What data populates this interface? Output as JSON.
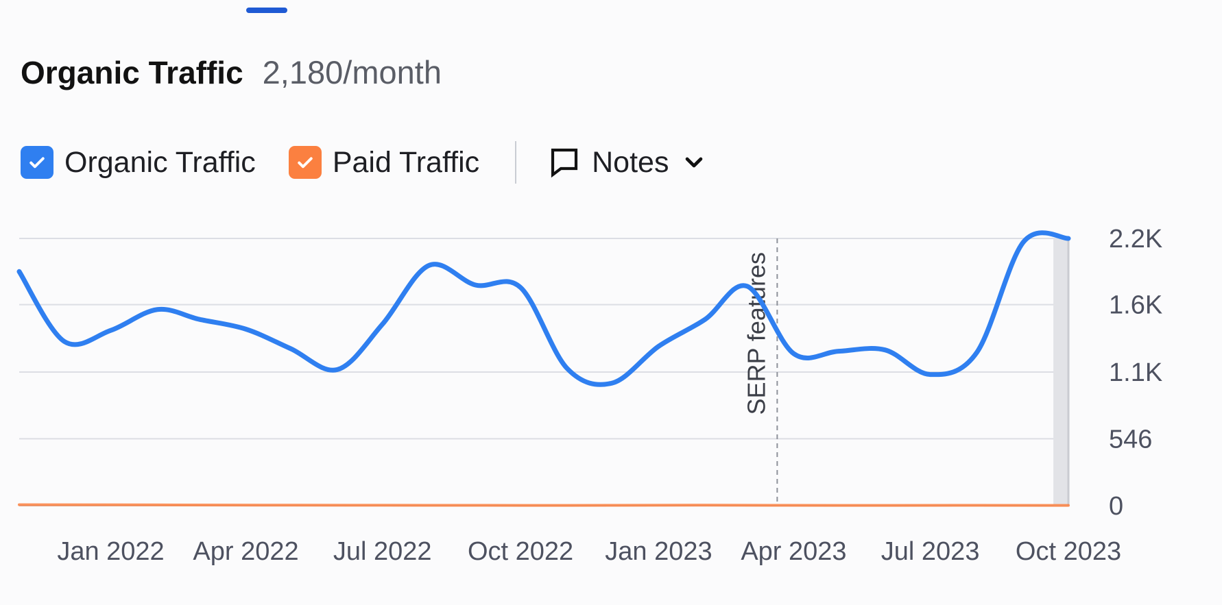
{
  "header": {
    "title": "Organic Traffic",
    "subtitle": "2,180/month"
  },
  "legend": {
    "items": [
      {
        "label": "Organic Traffic",
        "color": "#2f7ff0",
        "checked": true,
        "icon": "check-icon"
      },
      {
        "label": "Paid Traffic",
        "color": "#fb8040",
        "checked": true,
        "icon": "check-icon"
      }
    ],
    "notes": {
      "label": "Notes",
      "icon": "speech-bubble-icon",
      "dropdown_icon": "chevron-down-icon"
    }
  },
  "chart_data": {
    "type": "line",
    "title": "",
    "xlabel": "",
    "ylabel": "",
    "y_axis_position": "right",
    "grid": true,
    "xlim": [
      "2021-11",
      "2023-10"
    ],
    "ylim": [
      0,
      2180
    ],
    "y_ticks": [
      {
        "value": 0,
        "label": "0"
      },
      {
        "value": 546,
        "label": "546"
      },
      {
        "value": 1090,
        "label": "1.1K"
      },
      {
        "value": 1640,
        "label": "1.6K"
      },
      {
        "value": 2180,
        "label": "2.2K"
      }
    ],
    "x_ticks": [
      {
        "date": "2022-01",
        "label": "Jan 2022"
      },
      {
        "date": "2022-04",
        "label": "Apr 2022"
      },
      {
        "date": "2022-07",
        "label": "Jul 2022"
      },
      {
        "date": "2022-10",
        "label": "Oct 2022"
      },
      {
        "date": "2023-01",
        "label": "Jan 2023"
      },
      {
        "date": "2023-04",
        "label": "Apr 2023"
      },
      {
        "date": "2023-07",
        "label": "Jul 2023"
      },
      {
        "date": "2023-10",
        "label": "Oct 2023"
      }
    ],
    "series": [
      {
        "name": "Organic Traffic",
        "color": "#2f7ff0",
        "points": [
          {
            "x": "2021-11-01",
            "y": 1910
          },
          {
            "x": "2021-12-01",
            "y": 1340
          },
          {
            "x": "2022-01-01",
            "y": 1430
          },
          {
            "x": "2022-02-01",
            "y": 1600
          },
          {
            "x": "2022-03-01",
            "y": 1520
          },
          {
            "x": "2022-04-01",
            "y": 1440
          },
          {
            "x": "2022-05-01",
            "y": 1280
          },
          {
            "x": "2022-06-01",
            "y": 1110
          },
          {
            "x": "2022-07-01",
            "y": 1480
          },
          {
            "x": "2022-08-01",
            "y": 1960
          },
          {
            "x": "2022-09-01",
            "y": 1800
          },
          {
            "x": "2022-10-01",
            "y": 1780
          },
          {
            "x": "2022-11-01",
            "y": 1120
          },
          {
            "x": "2022-12-01",
            "y": 1000
          },
          {
            "x": "2023-01-01",
            "y": 1300
          },
          {
            "x": "2023-02-01",
            "y": 1520
          },
          {
            "x": "2023-03-01",
            "y": 1790
          },
          {
            "x": "2023-04-01",
            "y": 1240
          },
          {
            "x": "2023-05-01",
            "y": 1260
          },
          {
            "x": "2023-06-01",
            "y": 1270
          },
          {
            "x": "2023-07-01",
            "y": 1070
          },
          {
            "x": "2023-08-01",
            "y": 1250
          },
          {
            "x": "2023-09-01",
            "y": 2150
          },
          {
            "x": "2023-10-01",
            "y": 2180
          }
        ]
      },
      {
        "name": "Paid Traffic",
        "color": "#fb8040",
        "points": [
          {
            "x": "2021-11-01",
            "y": 8
          },
          {
            "x": "2022-02-01",
            "y": 6
          },
          {
            "x": "2022-05-01",
            "y": 4
          },
          {
            "x": "2022-08-01",
            "y": 3
          },
          {
            "x": "2022-11-01",
            "y": 2
          },
          {
            "x": "2023-02-01",
            "y": 4
          },
          {
            "x": "2023-05-01",
            "y": 2
          },
          {
            "x": "2023-08-01",
            "y": 3
          },
          {
            "x": "2023-10-01",
            "y": 2
          }
        ]
      }
    ],
    "annotations": [
      {
        "x": "2023-03-21",
        "label": "SERP features",
        "style": "dashed-vertical-line"
      }
    ],
    "highlight": {
      "x_start": "2023-09-21",
      "x_end": "2023-10-01"
    }
  }
}
